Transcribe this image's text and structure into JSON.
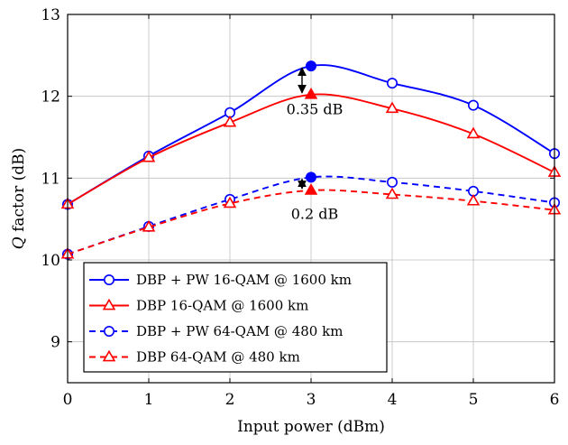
{
  "chart_data": {
    "type": "line",
    "xlabel": "Input power (dBm)",
    "ylabel_italic": "Q",
    "ylabel_rest": " factor (dB)",
    "xlim": [
      0,
      6
    ],
    "ylim": [
      8.5,
      13
    ],
    "xticks": [
      0,
      1,
      2,
      3,
      4,
      5,
      6
    ],
    "yticks": [
      9,
      10,
      11,
      12,
      13
    ],
    "grid": true,
    "legend_position": "bottom-left",
    "series": [
      {
        "name": "DBP + PW 16-QAM @ 1600 km",
        "color": "#0000ff",
        "marker": "circle",
        "dashed": false,
        "x": [
          0,
          1,
          2,
          3,
          4,
          5,
          6
        ],
        "y": [
          10.68,
          11.27,
          11.8,
          12.37,
          12.16,
          11.89,
          11.3
        ]
      },
      {
        "name": "DBP 16-QAM @ 1600 km",
        "color": "#ff0000",
        "marker": "triangle",
        "dashed": false,
        "x": [
          0,
          1,
          2,
          3,
          4,
          5,
          6
        ],
        "y": [
          10.68,
          11.25,
          11.68,
          12.02,
          11.85,
          11.54,
          11.07
        ]
      },
      {
        "name": "DBP + PW 64-QAM @ 480 km",
        "color": "#0000ff",
        "marker": "circle",
        "dashed": true,
        "x": [
          0,
          1,
          2,
          3,
          4,
          5,
          6
        ],
        "y": [
          10.07,
          10.41,
          10.74,
          11.01,
          10.95,
          10.84,
          10.7
        ]
      },
      {
        "name": "DBP 64-QAM @ 480 km",
        "color": "#ff0000",
        "marker": "triangle",
        "dashed": true,
        "x": [
          0,
          1,
          2,
          3,
          4,
          5,
          6
        ],
        "y": [
          10.07,
          10.4,
          10.69,
          10.85,
          10.8,
          10.72,
          10.61
        ]
      }
    ],
    "annotations": [
      {
        "text": "0.35 dB",
        "x": 3,
        "y_from": 12.02,
        "y_to": 12.37,
        "label_y": 11.78
      },
      {
        "text": "0.2 dB",
        "x": 3,
        "y_from": 10.85,
        "y_to": 11.01,
        "label_y": 10.5
      }
    ]
  }
}
